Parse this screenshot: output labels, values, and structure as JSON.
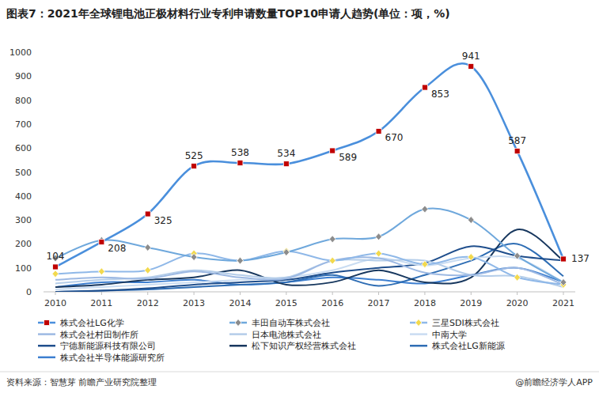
{
  "chart_data": {
    "type": "line",
    "title": "图表7：2021年全球锂电池正极材料行业专利申请数量TOP10申请人趋势(单位：项，%)",
    "annotations": [
      "资料来源：智慧芽 前瞻产业研究院整理",
      "@前瞻经济学人APP"
    ],
    "categories": [
      "2010",
      "2011",
      "2012",
      "2013",
      "2014",
      "2015",
      "2016",
      "2017",
      "2018",
      "2019",
      "2020",
      "2021"
    ],
    "ylim": [
      0,
      1000
    ],
    "yticks": [
      0,
      100,
      200,
      300,
      400,
      500,
      600,
      700,
      800,
      900,
      1000
    ],
    "grid": false,
    "legend": "bottom",
    "series": [
      {
        "name": "株式会社LG化学",
        "color": "#4a8fdc",
        "marker": "square",
        "data_labels": true,
        "values": [
          104,
          208,
          325,
          525,
          538,
          534,
          589,
          670,
          853,
          941,
          587,
          137
        ]
      },
      {
        "name": "丰田自动车株式会社",
        "color": "#6fa8dc",
        "marker": "diamond",
        "values": [
          140,
          215,
          185,
          145,
          130,
          165,
          220,
          230,
          345,
          300,
          150,
          40
        ]
      },
      {
        "name": "三星SDI株式会社",
        "color": "#8fb8e8",
        "marker": "diamond",
        "values": [
          75,
          85,
          90,
          160,
          130,
          170,
          130,
          160,
          115,
          145,
          60,
          30
        ]
      },
      {
        "name": "株式会社村田制作所",
        "color": "#9db9e3",
        "marker": "none",
        "values": [
          50,
          60,
          55,
          85,
          60,
          55,
          130,
          140,
          80,
          70,
          100,
          30
        ]
      },
      {
        "name": "日本电池株式会社",
        "color": "#b4cde9",
        "marker": "none",
        "values": [
          35,
          50,
          60,
          90,
          70,
          60,
          130,
          130,
          130,
          70,
          65,
          20
        ]
      },
      {
        "name": "中南大学",
        "color": "#c9dcf2",
        "marker": "none",
        "values": [
          10,
          20,
          30,
          40,
          50,
          60,
          90,
          140,
          110,
          140,
          140,
          40
        ]
      },
      {
        "name": "宁德新能源科技有限公司",
        "color": "#1f4e8c",
        "marker": "none",
        "values": [
          0,
          5,
          15,
          30,
          40,
          50,
          80,
          100,
          120,
          190,
          150,
          130
        ]
      },
      {
        "name": "松下知识产权经营株式会社",
        "color": "#17375e",
        "marker": "none",
        "values": [
          20,
          30,
          50,
          60,
          90,
          30,
          40,
          90,
          40,
          60,
          260,
          130
        ]
      },
      {
        "name": "株式会社LG新能源",
        "color": "#2e6db4",
        "marker": "none",
        "values": [
          0,
          5,
          10,
          20,
          30,
          40,
          70,
          25,
          70,
          130,
          200,
          65
        ]
      },
      {
        "name": "株式会社半导体能源研究所",
        "color": "#3d7fd0",
        "marker": "none",
        "values": [
          20,
          40,
          40,
          50,
          30,
          40,
          60,
          50,
          35,
          70,
          100,
          40
        ]
      }
    ]
  }
}
